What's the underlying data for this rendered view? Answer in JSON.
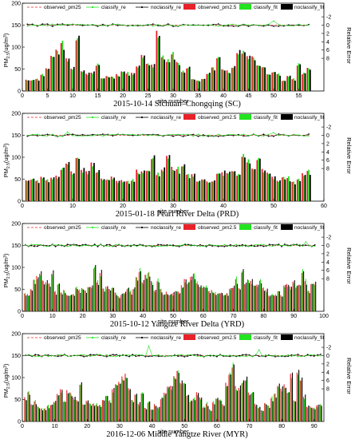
{
  "colors": {
    "observed": "#e8212a",
    "classify": "#22e31f",
    "noclassify": "#000000",
    "observed_re": "#e8212a"
  },
  "legend": {
    "observed_re": "observed_pm25",
    "classify_re": "classify_re",
    "noclassify_re": "noclassify_re",
    "observed_fit": "observed_pm2.5",
    "classify_fit": "classify_fit",
    "noclassify_fit": "noclassify_fit"
  },
  "labels": {
    "x": "site number",
    "y": "PM2.5(ug/m3)",
    "y_right": "Relative Error"
  },
  "panels": [
    {
      "caption": "2015-10-14 Sichuan–Chongqing (SC)",
      "chart_data": {
        "type": "bar",
        "n": 57,
        "seed": 11,
        "pm_range": [
          15,
          140
        ],
        "xlim": [
          0,
          60
        ],
        "xticks": [
          0,
          5,
          10,
          15,
          20,
          25,
          30,
          35,
          40,
          45,
          50,
          55
        ],
        "ylim": [
          0,
          200
        ],
        "yticks": [
          0,
          50,
          100,
          150,
          200
        ],
        "re_ticks": [
          -2,
          0,
          2,
          4,
          6,
          8
        ],
        "re_spikes": [
          {
            "site": 50,
            "value": -1
          }
        ]
      }
    },
    {
      "caption": "2015-01-18 Pearl River Delta (PRD)",
      "chart_data": {
        "type": "bar",
        "n": 57,
        "seed": 23,
        "pm_range": [
          40,
          105
        ],
        "xlim": [
          0,
          60
        ],
        "xticks": [
          0,
          10,
          20,
          30,
          40,
          50,
          60
        ],
        "ylim": [
          0,
          200
        ],
        "yticks": [
          0,
          50,
          100,
          150,
          200
        ],
        "re_ticks": [
          -2,
          0,
          2,
          4,
          6,
          8
        ],
        "re_spikes": [
          {
            "site": 9,
            "value": -0.8
          },
          {
            "site": 50,
            "value": -0.6
          }
        ]
      }
    },
    {
      "caption": "2015-10-12 Yangtze River Delta (YRD)",
      "chart_data": {
        "type": "bar",
        "n": 97,
        "seed": 37,
        "pm_range": [
          30,
          100
        ],
        "xlim": [
          0,
          100
        ],
        "xticks": [
          0,
          10,
          20,
          30,
          40,
          50,
          60,
          70,
          80,
          90,
          100
        ],
        "ylim": [
          0,
          200
        ],
        "yticks": [
          0,
          50,
          100,
          150,
          200
        ],
        "re_ticks": [
          -2,
          0,
          2,
          4,
          6,
          8
        ],
        "re_spikes": [
          {
            "site": 94,
            "value": -0.9
          },
          {
            "site": 54,
            "value": -0.4
          }
        ]
      }
    },
    {
      "caption": "2016-12-06 Middle Yangtze River (MYR)",
      "chart_data": {
        "type": "bar",
        "n": 92,
        "seed": 53,
        "pm_range": [
          20,
          125
        ],
        "xlim": [
          0,
          93
        ],
        "xticks": [
          0,
          10,
          20,
          30,
          40,
          50,
          60,
          70,
          80,
          90
        ],
        "ylim": [
          0,
          200
        ],
        "yticks": [
          0,
          50,
          100,
          150,
          200
        ],
        "re_ticks": [
          -2,
          0,
          2,
          4,
          6,
          8
        ],
        "re_spikes": [
          {
            "site": 39,
            "value": -2.3
          },
          {
            "site": 73,
            "value": -1.4
          }
        ]
      }
    }
  ]
}
